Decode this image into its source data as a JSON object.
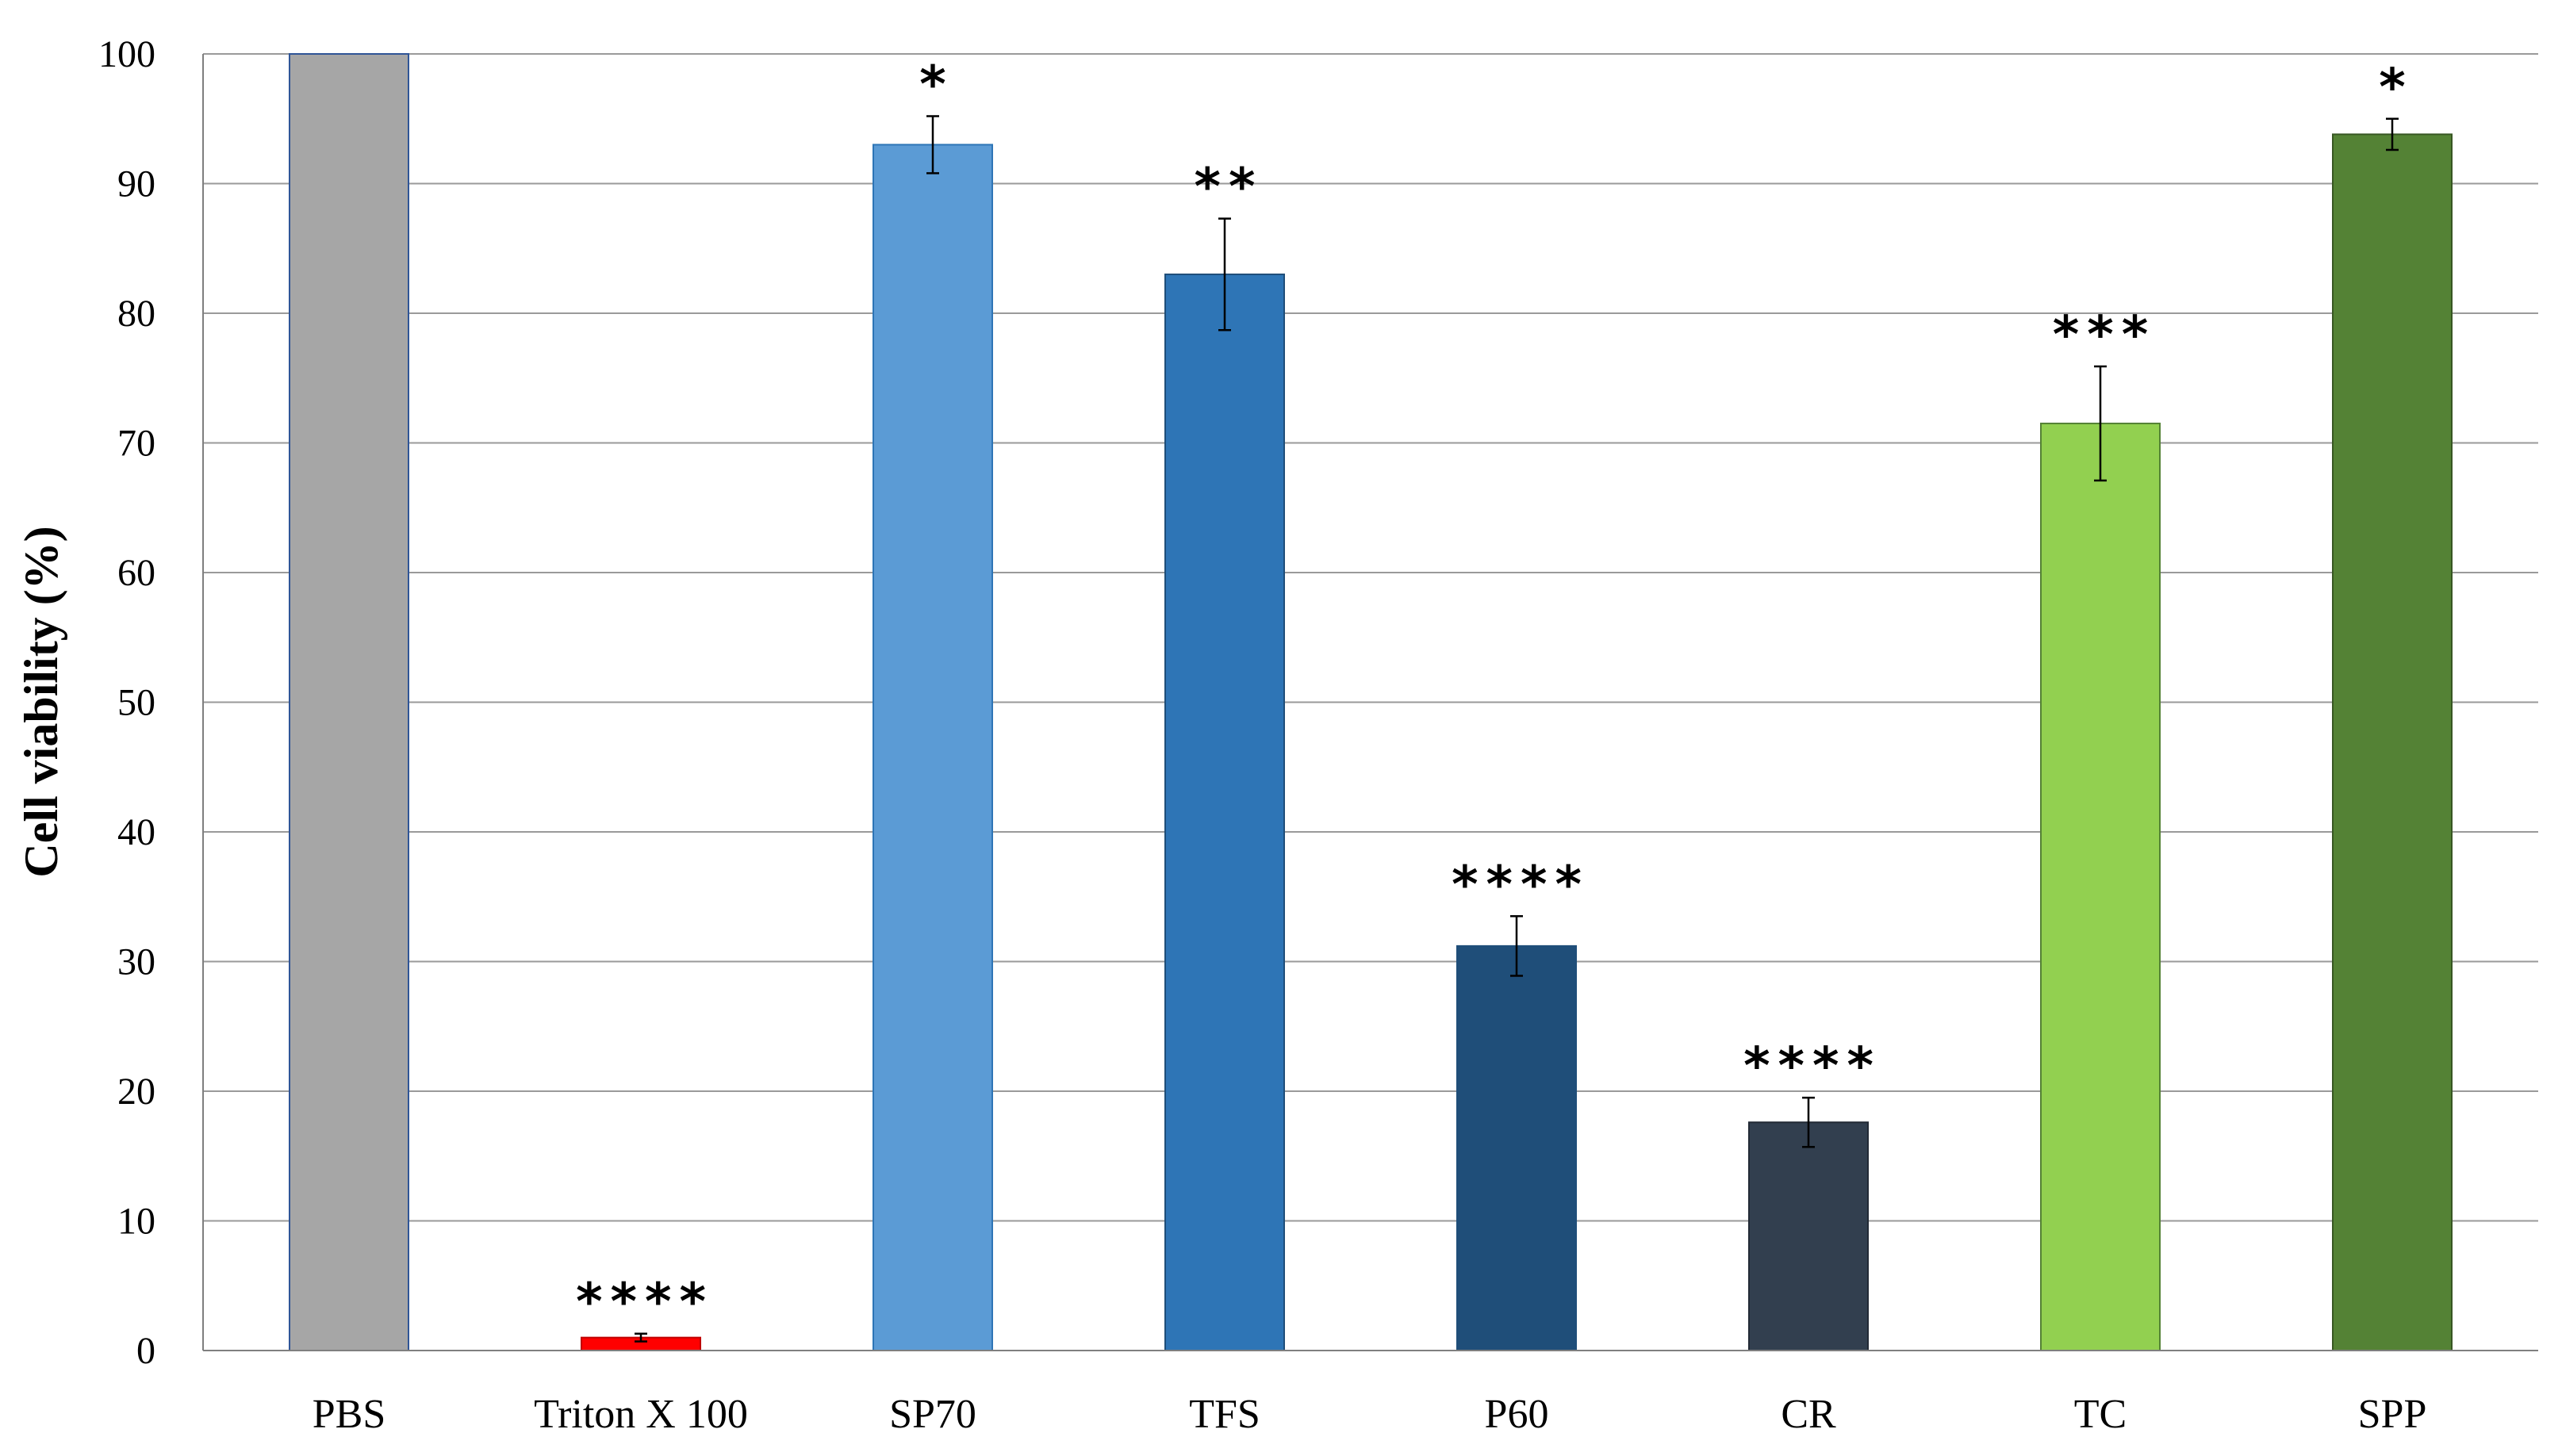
{
  "chart_data": {
    "type": "bar",
    "title": "",
    "xlabel": "",
    "ylabel": "Cell viability (%)",
    "ylim": [
      0,
      100
    ],
    "yticks": [
      0,
      10,
      20,
      30,
      40,
      50,
      60,
      70,
      80,
      90,
      100
    ],
    "grid": true,
    "categories": [
      "PBS",
      "Triton X 100",
      "SP70",
      "TFS",
      "P60",
      "CR",
      "TC",
      "SPP"
    ],
    "values": [
      100,
      1,
      93,
      83,
      31.2,
      17.6,
      71.5,
      93.8
    ],
    "errors": [
      0,
      0.3,
      2.2,
      4.3,
      2.3,
      1.9,
      4.4,
      1.2
    ],
    "significance": [
      "",
      "****",
      "*",
      "**",
      "****",
      "****",
      "***",
      "*"
    ],
    "colors": [
      "#a6a6a6",
      "#ff0000",
      "#5b9bd5",
      "#2e75b6",
      "#1f4e79",
      "#323f4f",
      "#92d050",
      "#548235"
    ],
    "border_colors": [
      "#2f5597",
      "#c00000",
      "#2e75b6",
      "#1f4e79",
      "#1f4e79",
      "#222a35",
      "#548235",
      "#385723"
    ]
  }
}
